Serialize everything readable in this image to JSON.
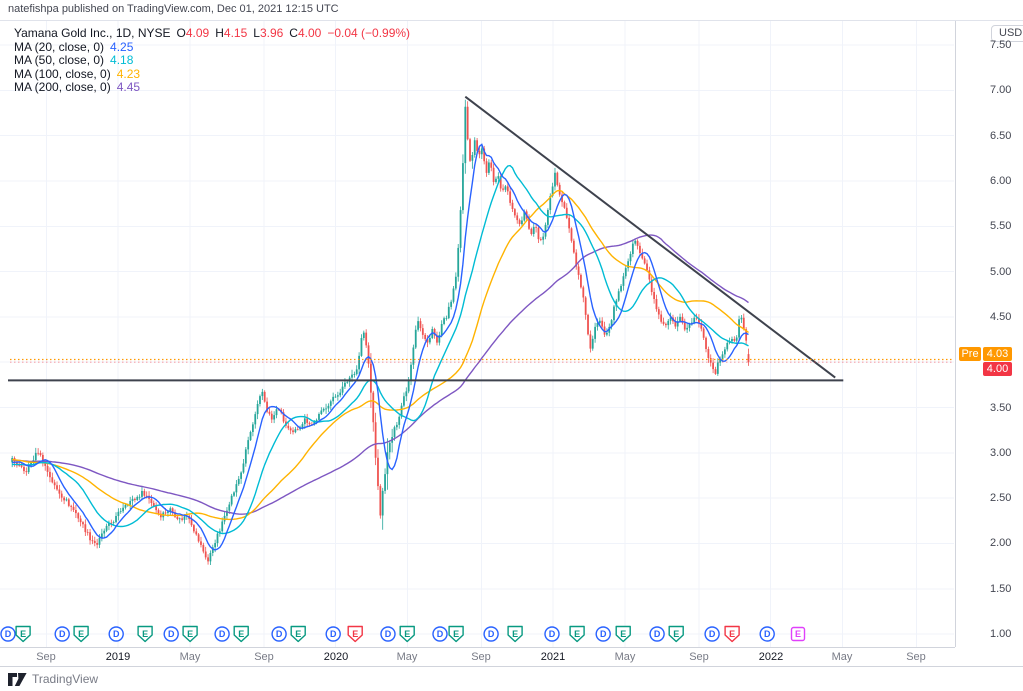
{
  "header": {
    "text": "natefishpa published on TradingView.com, Dec 01, 2021 12:15 UTC"
  },
  "watermark": {
    "brand": "TradingView"
  },
  "legend": {
    "title": "Yamana Gold Inc., 1D, NYSE",
    "ohlc": [
      {
        "l": "O",
        "v": "4.09"
      },
      {
        "l": "H",
        "v": "4.15"
      },
      {
        "l": "L",
        "v": "3.96"
      },
      {
        "l": "C",
        "v": "4.00"
      }
    ],
    "change": "−0.04 (−0.99%)",
    "value_color": "#f23645",
    "mas": [
      {
        "label": "MA (20, close, 0)",
        "value": "4.25",
        "color": "#2962ff",
        "window": 20
      },
      {
        "label": "MA (50, close, 0)",
        "value": "4.18",
        "color": "#00bcd4",
        "window": 50
      },
      {
        "label": "MA (100, close, 0)",
        "value": "4.23",
        "color": "#ffb300",
        "window": 100
      },
      {
        "label": "MA (200, close, 0)",
        "value": "4.45",
        "color": "#7e57c2",
        "window": 200
      }
    ]
  },
  "price_axis": {
    "currency": "USD",
    "tick_labels": [
      "7.50",
      "7.00",
      "6.50",
      "6.00",
      "5.50",
      "5.00",
      "4.50",
      "3.50",
      "3.00",
      "2.50",
      "2.00",
      "1.50",
      "1.00"
    ],
    "pre_label": "Pre",
    "pre_value": "4.03",
    "pre_color": "#ff9800",
    "last_value": "4.00",
    "last_color": "#f23645"
  },
  "time_axis": {
    "labels": [
      {
        "text": "Sep",
        "t": 2018.67,
        "year": false
      },
      {
        "text": "2019",
        "t": 2019.0,
        "year": true
      },
      {
        "text": "May",
        "t": 2019.33,
        "year": false
      },
      {
        "text": "Sep",
        "t": 2019.67,
        "year": false
      },
      {
        "text": "2020",
        "t": 2020.0,
        "year": true
      },
      {
        "text": "May",
        "t": 2020.33,
        "year": false
      },
      {
        "text": "Sep",
        "t": 2020.67,
        "year": false
      },
      {
        "text": "2021",
        "t": 2021.0,
        "year": true
      },
      {
        "text": "May",
        "t": 2021.33,
        "year": false
      },
      {
        "text": "Sep",
        "t": 2021.67,
        "year": false
      },
      {
        "text": "2022",
        "t": 2022.0,
        "year": true
      },
      {
        "text": "May",
        "t": 2022.33,
        "year": false
      },
      {
        "text": "Sep",
        "t": 2022.67,
        "year": false
      }
    ]
  },
  "chart_data": {
    "type": "candlestick",
    "symbol": "Yamana Gold Inc.",
    "interval": "1D",
    "exchange": "NYSE",
    "last_bar": {
      "open": 4.09,
      "high": 4.15,
      "low": 3.96,
      "close": 4.0,
      "change": -0.04,
      "change_pct": -0.99
    },
    "pre_market_price": 4.03,
    "up_color": "#26a69a",
    "down_color": "#ef5350",
    "grid_color": "#f0f3fa",
    "xlim_years": [
      2018.457,
      2022.843
    ],
    "ylim": [
      0.858,
      7.776
    ],
    "price_grid_step": 0.5,
    "price_grid_range": [
      1.0,
      7.5
    ],
    "data_start_year": 2018.513,
    "data_end_year": 2021.906,
    "close_keypoints": [
      [
        2018.513,
        2.93
      ],
      [
        2018.572,
        2.78
      ],
      [
        2018.632,
        3.02
      ],
      [
        2018.71,
        2.62
      ],
      [
        2018.802,
        2.35
      ],
      [
        2018.871,
        2.06
      ],
      [
        2018.903,
        1.99
      ],
      [
        2018.94,
        2.16
      ],
      [
        2018.986,
        2.27
      ],
      [
        2019.032,
        2.44
      ],
      [
        2019.078,
        2.49
      ],
      [
        2019.115,
        2.57
      ],
      [
        2019.147,
        2.48
      ],
      [
        2019.193,
        2.31
      ],
      [
        2019.239,
        2.38
      ],
      [
        2019.285,
        2.26
      ],
      [
        2019.322,
        2.32
      ],
      [
        2019.359,
        2.09
      ],
      [
        2019.391,
        1.92
      ],
      [
        2019.414,
        1.8
      ],
      [
        2019.437,
        1.98
      ],
      [
        2019.469,
        2.15
      ],
      [
        2019.506,
        2.43
      ],
      [
        2019.538,
        2.6
      ],
      [
        2019.57,
        2.82
      ],
      [
        2019.598,
        3.14
      ],
      [
        2019.621,
        3.32
      ],
      [
        2019.644,
        3.54
      ],
      [
        2019.662,
        3.68
      ],
      [
        2019.685,
        3.47
      ],
      [
        2019.708,
        3.36
      ],
      [
        2019.736,
        3.51
      ],
      [
        2019.768,
        3.31
      ],
      [
        2019.8,
        3.2
      ],
      [
        2019.828,
        3.28
      ],
      [
        2019.86,
        3.37
      ],
      [
        2019.892,
        3.31
      ],
      [
        2019.929,
        3.43
      ],
      [
        2019.966,
        3.54
      ],
      [
        2019.998,
        3.62
      ],
      [
        2020.03,
        3.71
      ],
      [
        2020.067,
        3.84
      ],
      [
        2020.099,
        3.93
      ],
      [
        2020.126,
        4.38
      ],
      [
        2020.149,
        4.05
      ],
      [
        2020.172,
        3.37
      ],
      [
        2020.191,
        2.72
      ],
      [
        2020.205,
        2.31
      ],
      [
        2020.223,
        2.71
      ],
      [
        2020.241,
        3.04
      ],
      [
        2020.264,
        3.21
      ],
      [
        2020.287,
        3.37
      ],
      [
        2020.31,
        3.59
      ],
      [
        2020.333,
        3.76
      ],
      [
        2020.356,
        4.15
      ],
      [
        2020.375,
        4.5
      ],
      [
        2020.398,
        4.31
      ],
      [
        2020.421,
        4.2
      ],
      [
        2020.444,
        4.37
      ],
      [
        2020.467,
        4.2
      ],
      [
        2020.49,
        4.42
      ],
      [
        2020.513,
        4.53
      ],
      [
        2020.536,
        4.7
      ],
      [
        2020.554,
        4.97
      ],
      [
        2020.568,
        5.36
      ],
      [
        2020.582,
        6.02
      ],
      [
        2020.596,
        6.85
      ],
      [
        2020.609,
        6.36
      ],
      [
        2020.623,
        6.18
      ],
      [
        2020.637,
        6.46
      ],
      [
        2020.655,
        6.29
      ],
      [
        2020.674,
        6.35
      ],
      [
        2020.692,
        6.07
      ],
      [
        2020.71,
        6.24
      ],
      [
        2020.729,
        5.97
      ],
      [
        2020.747,
        6.07
      ],
      [
        2020.766,
        5.86
      ],
      [
        2020.784,
        5.97
      ],
      [
        2020.802,
        5.74
      ],
      [
        2020.825,
        5.63
      ],
      [
        2020.848,
        5.52
      ],
      [
        2020.871,
        5.69
      ],
      [
        2020.894,
        5.41
      ],
      [
        2020.917,
        5.52
      ],
      [
        2020.94,
        5.3
      ],
      [
        2020.963,
        5.47
      ],
      [
        2020.986,
        5.8
      ],
      [
        2021.009,
        6.07
      ],
      [
        2021.032,
        5.86
      ],
      [
        2021.055,
        5.69
      ],
      [
        2021.078,
        5.41
      ],
      [
        2021.101,
        5.14
      ],
      [
        2021.124,
        4.86
      ],
      [
        2021.147,
        4.59
      ],
      [
        2021.17,
        4.12
      ],
      [
        2021.193,
        4.37
      ],
      [
        2021.216,
        4.48
      ],
      [
        2021.239,
        4.31
      ],
      [
        2021.262,
        4.42
      ],
      [
        2021.285,
        4.64
      ],
      [
        2021.308,
        4.81
      ],
      [
        2021.331,
        5.03
      ],
      [
        2021.354,
        5.19
      ],
      [
        2021.377,
        5.36
      ],
      [
        2021.4,
        5.19
      ],
      [
        2021.423,
        5.08
      ],
      [
        2021.446,
        4.86
      ],
      [
        2021.469,
        4.64
      ],
      [
        2021.492,
        4.45
      ],
      [
        2021.515,
        4.37
      ],
      [
        2021.538,
        4.5
      ],
      [
        2021.561,
        4.37
      ],
      [
        2021.584,
        4.48
      ],
      [
        2021.607,
        4.37
      ],
      [
        2021.63,
        4.42
      ],
      [
        2021.653,
        4.5
      ],
      [
        2021.676,
        4.42
      ],
      [
        2021.699,
        4.2
      ],
      [
        2021.722,
        4.0
      ],
      [
        2021.745,
        3.89
      ],
      [
        2021.768,
        4.04
      ],
      [
        2021.791,
        4.17
      ],
      [
        2021.814,
        4.26
      ],
      [
        2021.837,
        4.2
      ],
      [
        2021.86,
        4.53
      ],
      [
        2021.883,
        4.31
      ],
      [
        2021.906,
        4.0
      ]
    ],
    "drawings": {
      "trendline": {
        "from": [
          2020.596,
          6.93
        ],
        "to": [
          2022.297,
          3.83
        ],
        "color": "#3e424d",
        "width": 2
      },
      "support_line": {
        "price": 3.8,
        "from": 2018.494,
        "to": 2022.334,
        "color": "#3e424d",
        "width": 2
      },
      "pre_market_line": {
        "price": 4.03,
        "color": "#ff9800"
      },
      "last_price_line": {
        "price": 4.0,
        "color": "#f23645"
      }
    },
    "events": [
      {
        "type": "D",
        "t": 2018.494,
        "variant": "normal"
      },
      {
        "type": "E",
        "t": 2018.563,
        "variant": "normal"
      },
      {
        "type": "D",
        "t": 2018.743,
        "variant": "normal"
      },
      {
        "type": "E",
        "t": 2018.83,
        "variant": "normal"
      },
      {
        "type": "D",
        "t": 2018.991,
        "variant": "normal"
      },
      {
        "type": "E",
        "t": 2019.124,
        "variant": "normal"
      },
      {
        "type": "D",
        "t": 2019.244,
        "variant": "normal"
      },
      {
        "type": "E",
        "t": 2019.331,
        "variant": "normal"
      },
      {
        "type": "D",
        "t": 2019.478,
        "variant": "normal"
      },
      {
        "type": "E",
        "t": 2019.566,
        "variant": "normal"
      },
      {
        "type": "D",
        "t": 2019.74,
        "variant": "normal"
      },
      {
        "type": "E",
        "t": 2019.828,
        "variant": "normal"
      },
      {
        "type": "D",
        "t": 2019.989,
        "variant": "normal"
      },
      {
        "type": "E",
        "t": 2020.09,
        "variant": "red"
      },
      {
        "type": "D",
        "t": 2020.241,
        "variant": "normal"
      },
      {
        "type": "E",
        "t": 2020.329,
        "variant": "normal"
      },
      {
        "type": "D",
        "t": 2020.48,
        "variant": "normal"
      },
      {
        "type": "E",
        "t": 2020.554,
        "variant": "normal"
      },
      {
        "type": "D",
        "t": 2020.715,
        "variant": "normal"
      },
      {
        "type": "E",
        "t": 2020.825,
        "variant": "normal"
      },
      {
        "type": "D",
        "t": 2020.995,
        "variant": "normal"
      },
      {
        "type": "E",
        "t": 2021.11,
        "variant": "normal"
      },
      {
        "type": "D",
        "t": 2021.23,
        "variant": "normal"
      },
      {
        "type": "E",
        "t": 2021.322,
        "variant": "normal"
      },
      {
        "type": "D",
        "t": 2021.478,
        "variant": "normal"
      },
      {
        "type": "E",
        "t": 2021.566,
        "variant": "normal"
      },
      {
        "type": "D",
        "t": 2021.731,
        "variant": "normal"
      },
      {
        "type": "E",
        "t": 2021.823,
        "variant": "red"
      },
      {
        "type": "D",
        "t": 2021.984,
        "variant": "normal"
      },
      {
        "type": "E",
        "t": 2022.126,
        "variant": "future"
      }
    ],
    "event_colors": {
      "D": "#2962ff",
      "E": "#089981",
      "red": "#f23645",
      "future": "#e040fb"
    }
  }
}
